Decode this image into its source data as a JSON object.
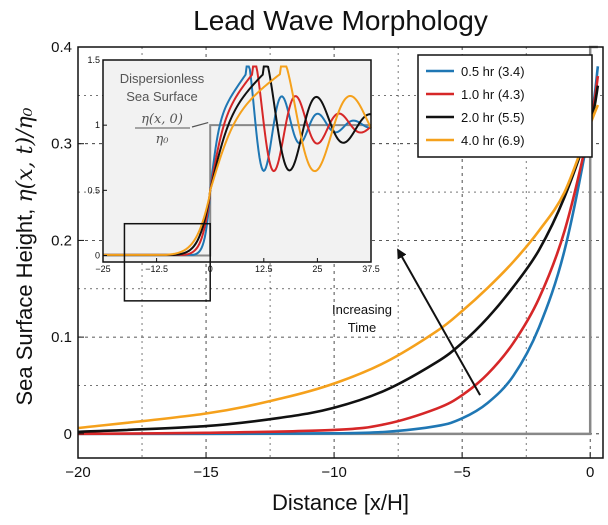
{
  "chart_data": {
    "type": "line",
    "title": "Lead Wave Morphology",
    "xlabel": "Distance [x/H]",
    "ylabel_prefix": "Sea Surface Height, ",
    "ylabel_math": "η(x, t)/η₀",
    "xlim": [
      -20,
      0.5
    ],
    "ylim": [
      -0.025,
      0.4
    ],
    "xticks": [
      -20,
      -15,
      -10,
      -5,
      0
    ],
    "xtick_labels": [
      "−20",
      "−15",
      "−10",
      "−5",
      "0"
    ],
    "yticks": [
      0,
      0.1,
      0.2,
      0.3,
      0.4
    ],
    "ytick_labels": [
      "0",
      "0.1",
      "0.2",
      "0.3",
      "0.4"
    ],
    "grid": true,
    "legend_position": "top-right",
    "series": [
      {
        "name": "0.5 hr (3.4)",
        "color": "#1f77b4",
        "x": [
          -20,
          -15,
          -10,
          -8,
          -6,
          -5,
          -4,
          -3,
          -2,
          -1,
          0,
          0.3
        ],
        "y": [
          0,
          0,
          0.0005,
          0.002,
          0.008,
          0.016,
          0.032,
          0.06,
          0.11,
          0.19,
          0.32,
          0.38
        ]
      },
      {
        "name": "1.0 hr (4.3)",
        "color": "#d62728",
        "x": [
          -20,
          -15,
          -10,
          -8,
          -6,
          -5,
          -4,
          -3,
          -2,
          -1,
          0,
          0.3
        ],
        "y": [
          0,
          0.001,
          0.004,
          0.01,
          0.026,
          0.04,
          0.062,
          0.094,
          0.14,
          0.21,
          0.32,
          0.37
        ]
      },
      {
        "name": "2.0 hr (5.5)",
        "color": "#111111",
        "x": [
          -20,
          -15,
          -12,
          -10,
          -8,
          -6,
          -5,
          -4,
          -3,
          -2,
          -1,
          0,
          0.3
        ],
        "y": [
          0.002,
          0.008,
          0.017,
          0.027,
          0.045,
          0.074,
          0.094,
          0.12,
          0.152,
          0.19,
          0.245,
          0.32,
          0.36
        ]
      },
      {
        "name": "4.0 hr (6.9)",
        "color": "#f5a11c",
        "x": [
          -20,
          -15,
          -12,
          -10,
          -8,
          -6,
          -5,
          -4,
          -3,
          -2,
          -1,
          0,
          0.3
        ],
        "y": [
          0.006,
          0.021,
          0.037,
          0.052,
          0.074,
          0.106,
          0.127,
          0.151,
          0.178,
          0.21,
          0.25,
          0.32,
          0.34
        ]
      }
    ],
    "step_series": {
      "color": "#888888",
      "x": [
        -20,
        0,
        0,
        0.3
      ],
      "y": [
        0,
        0,
        0.4,
        0.4
      ]
    },
    "annotations": {
      "arrow_text_line1": "Increasing",
      "arrow_text_line2": "Time",
      "arrow_from": [
        -4.3,
        0.04
      ],
      "arrow_to": [
        -7.5,
        0.19
      ]
    },
    "inset": {
      "xlim": [
        -25,
        37.5
      ],
      "ylim": [
        -0.05,
        1.5
      ],
      "xticks": [
        -25,
        -12.5,
        0,
        12.5,
        25,
        37.5
      ],
      "xtick_labels": [
        "−25",
        "−12.5",
        "0",
        "12.5",
        "25",
        "37.5"
      ],
      "yticks": [
        0,
        0.5,
        1,
        1.5
      ],
      "ytick_labels": [
        "0",
        "0.5",
        "1",
        "1.5"
      ],
      "label_line1": "Dispersionless",
      "label_line2": "Sea Surface",
      "label_math_num": "η(x, 0)",
      "label_math_den": "η₀",
      "zoom_box": {
        "x": [
          -20,
          0
        ],
        "y": [
          0,
          0.4
        ]
      },
      "background": "#f2f2f2"
    }
  }
}
